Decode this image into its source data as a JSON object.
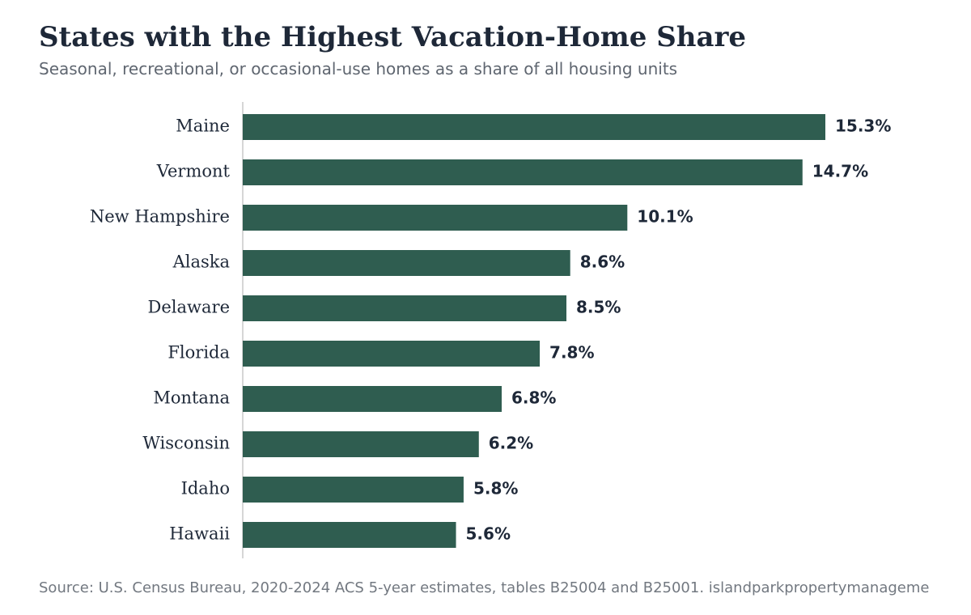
{
  "chart_data": {
    "type": "bar",
    "orientation": "horizontal",
    "title": "States with the Highest Vacation-Home Share",
    "subtitle": "Seasonal, recreational, or occasional-use homes as a share of all housing units",
    "categories": [
      "Maine",
      "Vermont",
      "New Hampshire",
      "Alaska",
      "Delaware",
      "Florida",
      "Montana",
      "Wisconsin",
      "Idaho",
      "Hawaii"
    ],
    "values": [
      15.3,
      14.7,
      10.1,
      8.6,
      8.5,
      7.8,
      6.8,
      6.2,
      5.8,
      5.6
    ],
    "value_labels": [
      "15.3%",
      "14.7%",
      "10.1%",
      "8.6%",
      "8.5%",
      "7.8%",
      "6.8%",
      "6.2%",
      "5.8%",
      "5.6%"
    ],
    "color": "#2f5d50",
    "source": "Source: U.S. Census Bureau, 2020-2024 ACS 5-year estimates, tables B25004 and B25001. islandparkpropertymanageme"
  }
}
